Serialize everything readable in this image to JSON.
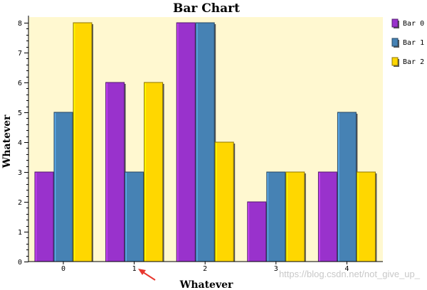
{
  "chart_data": {
    "type": "bar",
    "title": "Bar Chart",
    "xlabel": "Whatever",
    "ylabel": "Whatever",
    "categories": [
      "0",
      "1",
      "2",
      "3",
      "4"
    ],
    "ylim": [
      0,
      8
    ],
    "yticks": [
      "0",
      "1",
      "2",
      "3",
      "4",
      "5",
      "6",
      "7",
      "8"
    ],
    "grid": false,
    "legend": "right",
    "plot_background": "#fff8d0",
    "series": [
      {
        "name": "Bar 0",
        "color": "#9932cc",
        "values": [
          3,
          6,
          8,
          2,
          3
        ]
      },
      {
        "name": "Bar 1",
        "color": "#4682b4",
        "values": [
          5,
          3,
          8,
          3,
          5
        ]
      },
      {
        "name": "Bar 2",
        "color": "#ffd700",
        "values": [
          8,
          6,
          4,
          3,
          3
        ]
      }
    ]
  },
  "watermark": "https://blog.csdn.net/not_give_up_",
  "annotation_icon": "red-arrow-icon"
}
